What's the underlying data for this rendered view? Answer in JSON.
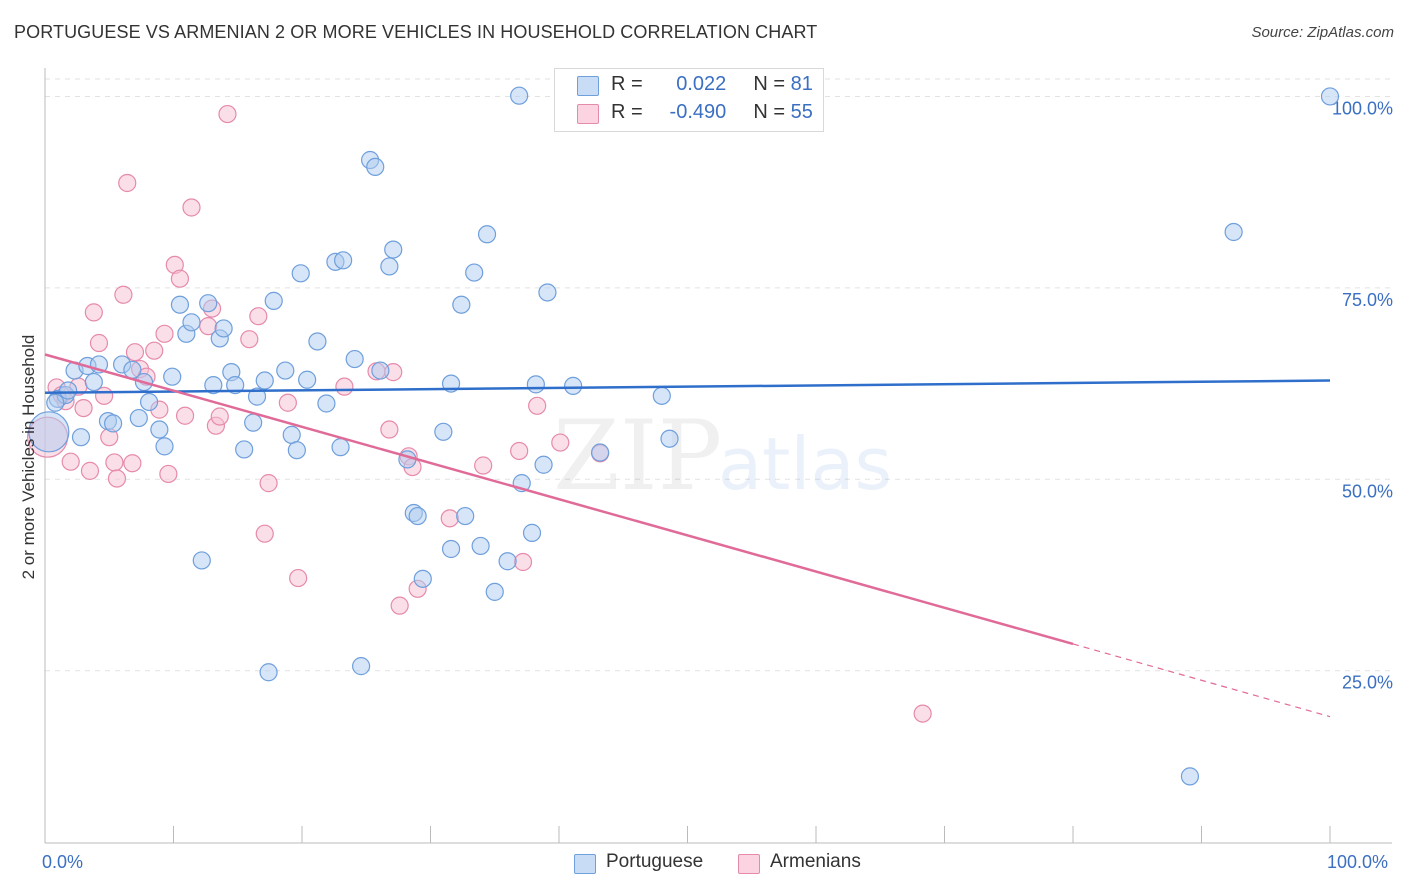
{
  "title": "PORTUGUESE VS ARMENIAN 2 OR MORE VEHICLES IN HOUSEHOLD CORRELATION CHART",
  "source": "Source: ZipAtlas.com",
  "watermark": {
    "zip": "ZIP",
    "atlas": "atlas"
  },
  "colors": {
    "portuguese_fill": "#aecbf0",
    "portuguese_stroke": "#6f9fdc",
    "portuguese_line": "#2f6fcb",
    "armenians_fill": "#f7bfd2",
    "armenians_stroke": "#e68aab",
    "armenians_line": "#e06a98",
    "tick_label": "#3b6fc2",
    "grid": "#e2e2e2"
  },
  "legend": {
    "rows": [
      {
        "r_label": "R =",
        "r_value": "0.022",
        "n_label": "N =",
        "n_value": "81"
      },
      {
        "r_label": "R =",
        "r_value": "-0.490",
        "n_label": "N =",
        "n_value": "55"
      }
    ]
  },
  "bottom_legend": {
    "portuguese": "Portuguese",
    "armenians": "Armenians"
  },
  "chart_data": {
    "type": "scatter",
    "title": "PORTUGUESE VS ARMENIAN 2 OR MORE VEHICLES IN HOUSEHOLD CORRELATION CHART",
    "xlabel": "",
    "ylabel": "2 or more Vehicles in Household",
    "xlim": [
      0,
      100
    ],
    "ylim": [
      2.5,
      104.5
    ],
    "x_tick_labels": [
      "0.0%",
      "100.0%"
    ],
    "y_ticks": [
      25,
      50,
      75,
      100
    ],
    "y_tick_labels": [
      "25.0%",
      "50.0%",
      "75.0%",
      "100.0%"
    ],
    "grid": true,
    "legend_position": "top-center",
    "series": [
      {
        "name": "Portuguese",
        "R": 0.022,
        "N": 81,
        "trend": {
          "x": [
            0,
            100
          ],
          "y": [
            61.3,
            62.9
          ]
        },
        "points": [
          [
            0.3,
            56.2,
            3
          ],
          [
            1.0,
            60.5,
            1
          ],
          [
            1.6,
            61.0,
            1
          ],
          [
            2.3,
            64.2,
            1
          ],
          [
            2.8,
            55.5,
            1
          ],
          [
            3.3,
            64.8,
            1
          ],
          [
            3.8,
            62.7,
            1
          ],
          [
            4.2,
            65.0,
            1
          ],
          [
            4.9,
            57.6,
            1
          ],
          [
            5.3,
            57.3,
            1
          ],
          [
            6.0,
            65.0,
            1
          ],
          [
            6.8,
            64.3,
            1
          ],
          [
            7.3,
            58.0,
            1
          ],
          [
            7.7,
            62.7,
            1
          ],
          [
            8.1,
            60.1,
            1
          ],
          [
            8.9,
            56.5,
            1
          ],
          [
            9.3,
            54.3,
            1
          ],
          [
            9.9,
            63.4,
            1
          ],
          [
            10.5,
            72.8,
            1
          ],
          [
            11.0,
            69.0,
            1
          ],
          [
            11.4,
            70.5,
            1
          ],
          [
            12.2,
            39.4,
            1
          ],
          [
            12.7,
            73.0,
            1
          ],
          [
            13.1,
            62.3,
            1
          ],
          [
            13.6,
            68.4,
            1
          ],
          [
            13.9,
            69.7,
            1
          ],
          [
            14.5,
            64.0,
            1
          ],
          [
            14.8,
            62.3,
            1
          ],
          [
            15.5,
            53.9,
            1
          ],
          [
            16.2,
            57.4,
            1
          ],
          [
            16.5,
            60.8,
            1
          ],
          [
            17.1,
            62.9,
            1
          ],
          [
            17.4,
            24.8,
            1
          ],
          [
            17.8,
            73.3,
            1
          ],
          [
            18.7,
            64.2,
            1
          ],
          [
            19.2,
            55.8,
            1
          ],
          [
            19.6,
            53.8,
            1
          ],
          [
            19.9,
            76.9,
            1
          ],
          [
            20.4,
            63.0,
            1
          ],
          [
            21.2,
            68.0,
            1
          ],
          [
            21.9,
            59.9,
            1
          ],
          [
            22.6,
            78.4,
            1
          ],
          [
            23.2,
            78.6,
            1
          ],
          [
            23.0,
            54.2,
            1
          ],
          [
            24.1,
            65.7,
            1
          ],
          [
            24.6,
            25.6,
            1
          ],
          [
            25.3,
            91.7,
            1
          ],
          [
            25.7,
            90.8,
            1
          ],
          [
            26.1,
            64.2,
            1
          ],
          [
            26.8,
            77.8,
            1
          ],
          [
            27.1,
            80.0,
            1
          ],
          [
            28.2,
            52.6,
            1
          ],
          [
            28.7,
            45.6,
            1
          ],
          [
            29.0,
            45.2,
            1
          ],
          [
            29.4,
            37.0,
            1
          ],
          [
            31.0,
            56.2,
            1
          ],
          [
            31.6,
            62.5,
            1
          ],
          [
            31.6,
            40.9,
            1
          ],
          [
            32.4,
            72.8,
            1
          ],
          [
            32.7,
            45.2,
            1
          ],
          [
            33.4,
            77.0,
            1
          ],
          [
            33.9,
            41.3,
            1
          ],
          [
            34.4,
            82.0,
            1
          ],
          [
            35.0,
            35.3,
            1
          ],
          [
            36.0,
            39.3,
            1
          ],
          [
            37.1,
            49.5,
            1
          ],
          [
            36.9,
            100.1,
            1
          ],
          [
            37.9,
            43.0,
            1
          ],
          [
            38.2,
            62.4,
            1
          ],
          [
            38.8,
            51.9,
            1
          ],
          [
            39.1,
            74.4,
            1
          ],
          [
            41.1,
            62.2,
            1
          ],
          [
            43.2,
            53.5,
            1
          ],
          [
            45.5,
            99.9,
            1
          ],
          [
            48.0,
            60.9,
            1
          ],
          [
            48.6,
            55.3,
            1
          ],
          [
            92.5,
            82.3,
            1
          ],
          [
            100.0,
            100.0,
            1
          ],
          [
            89.1,
            11.2,
            1
          ],
          [
            0.8,
            60.0,
            1
          ],
          [
            1.8,
            61.6,
            1
          ]
        ]
      },
      {
        "name": "Armenians",
        "R": -0.49,
        "N": 55,
        "trend": {
          "x": [
            0,
            80
          ],
          "y": [
            66.3,
            28.5
          ]
        },
        "trend_dashed": {
          "x": [
            80,
            100
          ],
          "y": [
            28.5,
            19.0
          ]
        },
        "points": [
          [
            0.2,
            55.5,
            3
          ],
          [
            0.9,
            62.0,
            1
          ],
          [
            1.3,
            61.0,
            1
          ],
          [
            1.6,
            60.2,
            1
          ],
          [
            2.0,
            52.3,
            1
          ],
          [
            2.6,
            62.1,
            1
          ],
          [
            3.0,
            59.3,
            1
          ],
          [
            3.5,
            51.1,
            1
          ],
          [
            3.8,
            71.8,
            1
          ],
          [
            4.2,
            67.8,
            1
          ],
          [
            4.6,
            60.9,
            1
          ],
          [
            5.0,
            55.5,
            1
          ],
          [
            5.4,
            52.2,
            1
          ],
          [
            5.6,
            50.1,
            1
          ],
          [
            6.1,
            74.1,
            1
          ],
          [
            6.4,
            88.7,
            1
          ],
          [
            6.8,
            52.1,
            1
          ],
          [
            7.0,
            66.6,
            1
          ],
          [
            7.4,
            64.4,
            1
          ],
          [
            7.9,
            63.4,
            1
          ],
          [
            8.5,
            66.8,
            1
          ],
          [
            8.9,
            59.1,
            1
          ],
          [
            9.3,
            69.0,
            1
          ],
          [
            9.6,
            50.7,
            1
          ],
          [
            10.1,
            78.0,
            1
          ],
          [
            10.5,
            76.2,
            1
          ],
          [
            10.9,
            58.3,
            1
          ],
          [
            11.4,
            85.5,
            1
          ],
          [
            12.7,
            70.0,
            1
          ],
          [
            13.0,
            72.3,
            1
          ],
          [
            13.3,
            57.0,
            1
          ],
          [
            13.6,
            58.2,
            1
          ],
          [
            14.2,
            97.7,
            1
          ],
          [
            15.9,
            68.3,
            1
          ],
          [
            16.6,
            71.3,
            1
          ],
          [
            17.1,
            42.9,
            1
          ],
          [
            17.4,
            49.5,
            1
          ],
          [
            18.9,
            60.0,
            1
          ],
          [
            19.7,
            37.1,
            1
          ],
          [
            23.3,
            62.1,
            1
          ],
          [
            25.8,
            64.1,
            1
          ],
          [
            26.8,
            56.5,
            1
          ],
          [
            27.1,
            64.0,
            1
          ],
          [
            27.6,
            33.5,
            1
          ],
          [
            28.3,
            53.0,
            1
          ],
          [
            28.6,
            51.6,
            1
          ],
          [
            29.0,
            35.7,
            1
          ],
          [
            31.5,
            44.9,
            1
          ],
          [
            34.1,
            51.8,
            1
          ],
          [
            36.9,
            53.7,
            1
          ],
          [
            37.2,
            39.2,
            1
          ],
          [
            38.3,
            59.6,
            1
          ],
          [
            40.1,
            54.8,
            1
          ],
          [
            43.2,
            53.4,
            1
          ],
          [
            68.3,
            19.4,
            1
          ]
        ]
      }
    ]
  }
}
